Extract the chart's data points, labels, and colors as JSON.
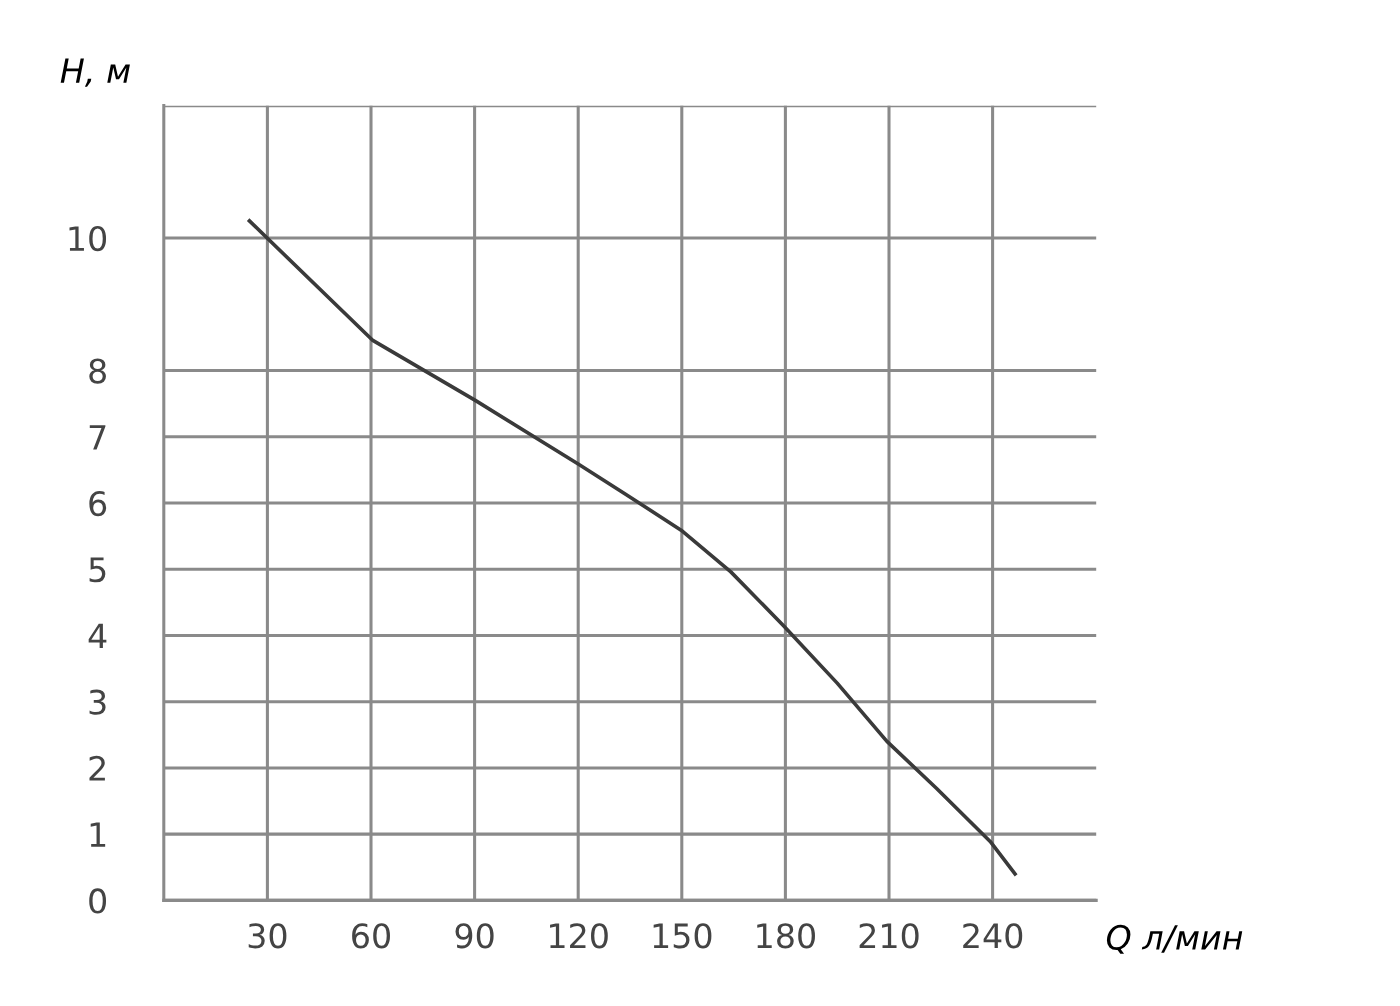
{
  "chart_data": {
    "type": "line",
    "xlabel": "Q л/мин",
    "ylabel": "H, м",
    "x": [
      24.8,
      60.4,
      90.2,
      120,
      133.5,
      149.8,
      164.2,
      179.6,
      195,
      209.4,
      223.8,
      239.3,
      246.5
    ],
    "series": [
      {
        "color": "#3a3a3a",
        "values": [
          10.26,
          8.46,
          7.55,
          6.59,
          6.14,
          5.59,
          4.96,
          4.14,
          3.28,
          2.4,
          1.69,
          0.89,
          0.4
        ]
      }
    ],
    "xlim": [
      0,
      270
    ],
    "xticks": [
      30,
      60,
      90,
      120,
      150,
      180,
      210,
      240
    ],
    "ylim": [
      0,
      12
    ],
    "yticks": [
      0,
      1,
      2,
      3,
      4,
      5,
      6,
      7,
      8,
      10,
      {
        "value": 12,
        "label": null
      }
    ],
    "grid": true,
    "marker": "none",
    "line_style": "solid",
    "legend": false
  }
}
